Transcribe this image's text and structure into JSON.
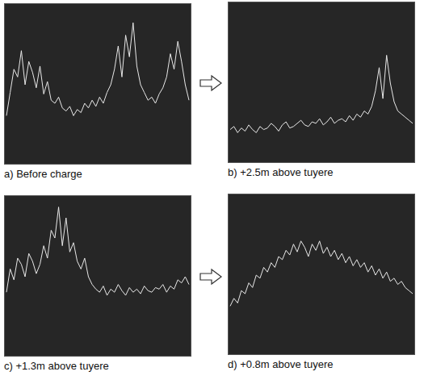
{
  "chart_data": [
    {
      "type": "line",
      "title": "a) Before charge",
      "color": "#e8e8e8",
      "tick_labels": false,
      "ylim": [
        0,
        100
      ],
      "values": [
        30,
        45,
        60,
        55,
        72,
        50,
        65,
        58,
        48,
        62,
        44,
        52,
        40,
        38,
        42,
        35,
        33,
        36,
        30,
        34,
        32,
        38,
        35,
        40,
        36,
        42,
        38,
        45,
        50,
        60,
        75,
        55,
        82,
        68,
        90,
        62,
        50,
        45,
        40,
        42,
        38,
        44,
        48,
        55,
        70,
        60,
        78,
        65,
        50,
        40
      ]
    },
    {
      "type": "line",
      "title": "b) +2.5m above tuyere",
      "color": "#e8e8e8",
      "tick_labels": false,
      "ylim": [
        0,
        100
      ],
      "values": [
        20,
        22,
        18,
        21,
        19,
        23,
        20,
        18,
        22,
        20,
        21,
        24,
        22,
        19,
        23,
        25,
        21,
        22,
        24,
        26,
        23,
        22,
        25,
        24,
        27,
        23,
        25,
        28,
        24,
        26,
        27,
        25,
        29,
        26,
        30,
        28,
        32,
        30,
        35,
        45,
        60,
        40,
        68,
        50,
        38,
        32,
        30,
        28,
        26,
        24
      ]
    },
    {
      "type": "line",
      "title": "c) +1.3m above tuyere",
      "color": "#e8e8e8",
      "tick_labels": false,
      "ylim": [
        0,
        100
      ],
      "values": [
        40,
        55,
        48,
        62,
        58,
        50,
        65,
        60,
        52,
        58,
        70,
        62,
        80,
        75,
        95,
        70,
        88,
        66,
        72,
        60,
        55,
        62,
        50,
        45,
        42,
        40,
        44,
        38,
        42,
        40,
        45,
        41,
        38,
        43,
        40,
        42,
        39,
        44,
        41,
        40,
        43,
        42,
        45,
        40,
        44,
        42,
        48,
        46,
        50,
        45
      ]
    },
    {
      "type": "line",
      "title": "d) +0.8m above tuyere",
      "color": "#e8e8e8",
      "tick_labels": false,
      "ylim": [
        0,
        100
      ],
      "values": [
        30,
        35,
        32,
        40,
        38,
        45,
        42,
        50,
        48,
        55,
        52,
        58,
        55,
        62,
        60,
        66,
        63,
        70,
        65,
        72,
        68,
        62,
        70,
        66,
        72,
        64,
        68,
        62,
        66,
        60,
        64,
        58,
        62,
        56,
        60,
        55,
        58,
        52,
        56,
        50,
        54,
        48,
        52,
        46,
        48,
        44,
        46,
        42,
        40,
        38
      ]
    }
  ]
}
